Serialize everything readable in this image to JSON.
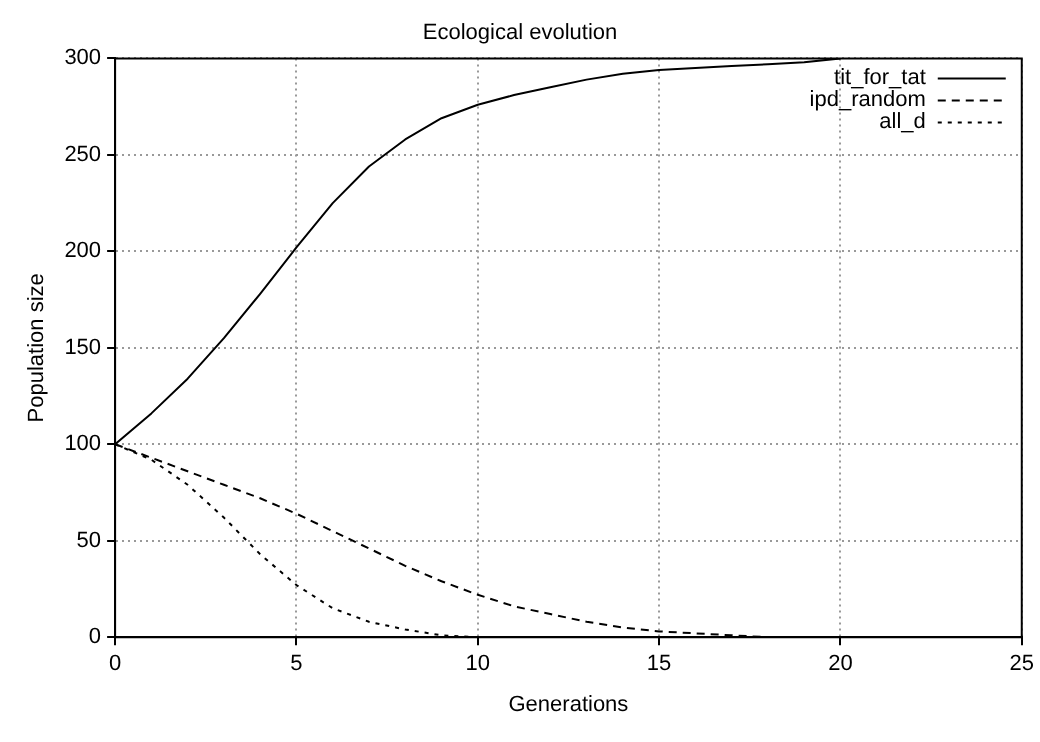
{
  "chart_data": {
    "type": "line",
    "title": "Ecological evolution",
    "xlabel": "Generations",
    "ylabel": "Population size",
    "xlim": [
      0,
      25
    ],
    "xticks": [
      0,
      5,
      10,
      15,
      20,
      25
    ],
    "ylim": [
      0,
      300
    ],
    "yticks": [
      0,
      50,
      100,
      150,
      200,
      250,
      300
    ],
    "grid": true,
    "legend": "top right",
    "marker": "none",
    "series": [
      {
        "name": "tit_for_tat",
        "color": "#000000",
        "line_style": "solid",
        "x": [
          0,
          1,
          2,
          3,
          4,
          5,
          6,
          7,
          8,
          9,
          10,
          11,
          12,
          13,
          14,
          15,
          16,
          17,
          18,
          19,
          20
        ],
        "values": [
          100,
          116,
          134,
          155,
          178,
          202,
          225,
          244,
          258,
          269,
          276,
          281,
          285,
          289,
          292,
          294,
          295,
          296,
          297,
          298,
          300
        ]
      },
      {
        "name": "ipd_random",
        "color": "#000000",
        "line_style": "dashed",
        "x": [
          0,
          1,
          2,
          3,
          4,
          5,
          6,
          7,
          8,
          9,
          10,
          11,
          12,
          13,
          14,
          15,
          16,
          17,
          18,
          19,
          20
        ],
        "values": [
          100,
          93,
          86,
          79,
          72,
          64,
          55,
          46,
          37,
          29,
          22,
          16,
          12,
          8,
          5,
          3,
          2,
          1,
          0,
          0,
          0
        ]
      },
      {
        "name": "all_d",
        "color": "#000000",
        "line_style": "dotted",
        "x": [
          0,
          1,
          2,
          3,
          4,
          5,
          6,
          7,
          8,
          9,
          10,
          11
        ],
        "values": [
          100,
          92,
          79,
          62,
          43,
          27,
          15,
          8,
          4,
          1,
          0,
          0
        ]
      }
    ]
  }
}
